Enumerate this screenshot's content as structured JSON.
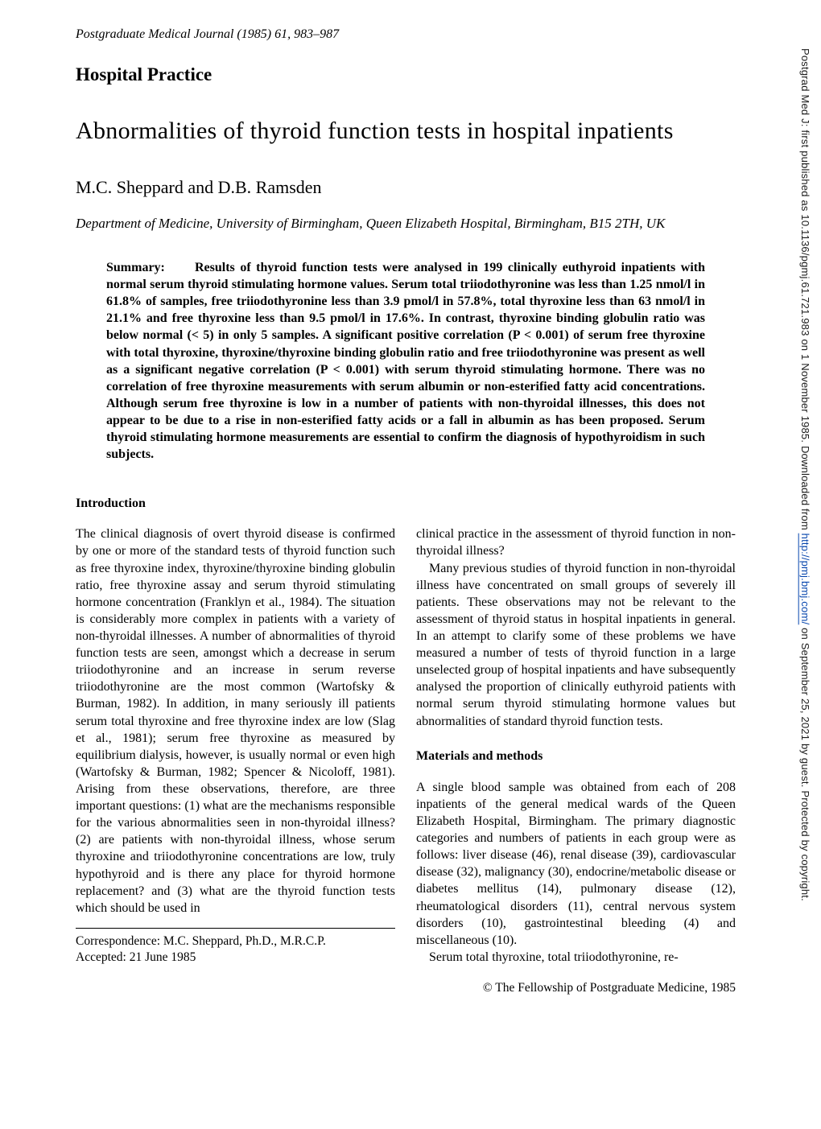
{
  "header": {
    "journal_ref": "Postgraduate Medical Journal (1985) 61, 983–987"
  },
  "section": "Hospital Practice",
  "title": "Abnormalities of thyroid function tests in hospital inpatients",
  "authors": "M.C. Sheppard and D.B. Ramsden",
  "affiliation": "Department of Medicine, University of Birmingham, Queen Elizabeth Hospital, Birmingham, B15 2TH, UK",
  "summary_label": "Summary:",
  "summary_body": "Results of thyroid function tests were analysed in 199 clinically euthyroid inpatients with normal serum thyroid stimulating hormone values. Serum total triiodothyronine was less than 1.25 nmol/l in 61.8% of samples, free triiodothyronine less than 3.9 pmol/l in 57.8%, total thyroxine less than 63 nmol/l in 21.1% and free thyroxine less than 9.5 pmol/l in 17.6%. In contrast, thyroxine binding globulin ratio was below normal (< 5) in only 5 samples. A significant positive correlation (P < 0.001) of serum free thyroxine with total thyroxine, thyroxine/thyroxine binding globulin ratio and free triiodothyronine was present as well as a significant negative correlation (P < 0.001) with serum thyroid stimulating hormone. There was no correlation of free thyroxine measurements with serum albumin or non-esterified fatty acid concentrations. Although serum free thyroxine is low in a number of patients with non-thyroidal illnesses, this does not appear to be due to a rise in non-esterified fatty acids or a fall in albumin as has been proposed. Serum thyroid stimulating hormone measurements are essential to confirm the diagnosis of hypothyroidism in such subjects.",
  "intro_heading": "Introduction",
  "left_paragraphs": {
    "p1": "The clinical diagnosis of overt thyroid disease is confirmed by one or more of the standard tests of thyroid function such as free thyroxine index, thyroxine/thyroxine binding globulin ratio, free thyroxine assay and serum thyroid stimulating hormone concentration (Franklyn et al., 1984). The situation is considerably more complex in patients with a variety of non-thyroidal illnesses. A number of abnormalities of thyroid function tests are seen, amongst which a decrease in serum triiodothyronine and an increase in serum reverse triiodothyronine are the most common (Wartofsky & Burman, 1982). In addition, in many seriously ill patients serum total thyroxine and free thyroxine index are low (Slag et al., 1981); serum free thyroxine as measured by equilibrium dialysis, however, is usually normal or even high (Wartofsky & Burman, 1982; Spencer & Nicoloff, 1981). Arising from these observations, therefore, are three important questions: (1) what are the mechanisms responsible for the various abnormalities seen in non-thyroidal illness? (2) are patients with non-thyroidal illness, whose serum thyroxine and triiodothyronine concentrations are low, truly hypothyroid and is there any place for thyroid hormone replacement? and (3) what are the thyroid function tests which should be used in"
  },
  "correspondence": "Correspondence: M.C. Sheppard, Ph.D., M.R.C.P.",
  "accepted": "Accepted: 21 June 1985",
  "right_paragraphs": {
    "p1": "clinical practice in the assessment of thyroid function in non-thyroidal illness?",
    "p2": "Many previous studies of thyroid function in non-thyroidal illness have concentrated on small groups of severely ill patients. These observations may not be relevant to the assessment of thyroid status in hospital inpatients in general. In an attempt to clarify some of these problems we have measured a number of tests of thyroid function in a large unselected group of hospital inpatients and have subsequently analysed the proportion of clinically euthyroid patients with normal serum thyroid stimulating hormone values but abnormalities of standard thyroid function tests."
  },
  "methods_heading": "Materials and methods",
  "methods_paragraphs": {
    "p1": "A single blood sample was obtained from each of 208 inpatients of the general medical wards of the Queen Elizabeth Hospital, Birmingham. The primary diagnostic categories and numbers of patients in each group were as follows: liver disease (46), renal disease (39), cardiovascular disease (32), malignancy (30), endocrine/metabolic disease or diabetes mellitus (14), pulmonary disease (12), rheumatological disorders (11), central nervous system disorders (10), gastrointestinal bleeding (4) and miscellaneous (10).",
    "p2": "Serum total thyroxine, total triiodothyronine, re-"
  },
  "copyright": "© The Fellowship of Postgraduate Medicine, 1985",
  "sidebar": {
    "text_before": "Postgrad Med J: first published as 10.1136/pgmj.61.721.983 on 1 November 1985. Downloaded from ",
    "link_text": "http://pmj.bmj.com/",
    "text_after": " on September 25, 2021 by guest. Protected by copyright."
  }
}
